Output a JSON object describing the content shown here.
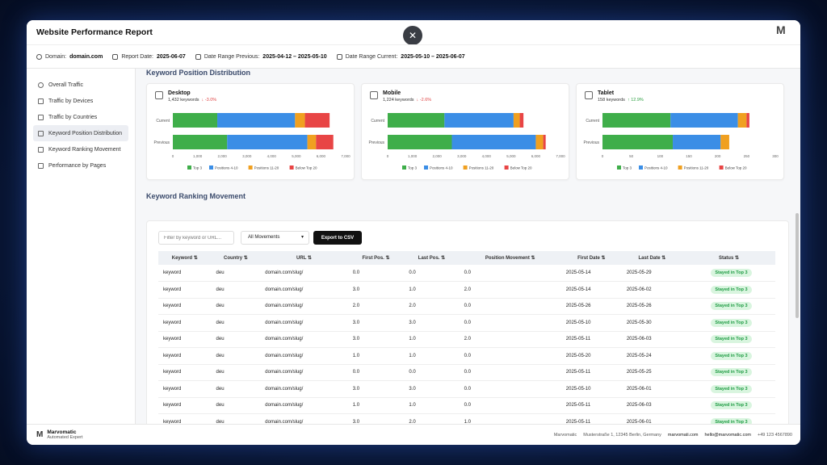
{
  "window": {
    "title": "Website Performance Report",
    "close_label": "✕",
    "logo": "M"
  },
  "info": {
    "domain_label": "Domain:",
    "domain_value": "domain.com",
    "report_date_label": "Report Date:",
    "report_date_value": "2025-06-07",
    "range_prev_label": "Date Range Previous:",
    "range_prev_value": "2025-04-12 – 2025-05-10",
    "range_cur_label": "Date Range Current:",
    "range_cur_value": "2025-05-10 – 2025-06-07"
  },
  "sidebar": {
    "items": [
      {
        "label": "Overall Traffic",
        "icon": "globe-icon"
      },
      {
        "label": "Traffic by Devices",
        "icon": "devices-icon"
      },
      {
        "label": "Traffic by Countries",
        "icon": "flag-icon"
      },
      {
        "label": "Keyword Position Distribution",
        "icon": "list-icon"
      },
      {
        "label": "Keyword Ranking Movement",
        "icon": "arrows-icon"
      },
      {
        "label": "Performance by Pages",
        "icon": "page-icon"
      }
    ]
  },
  "distribution": {
    "title": "Keyword Position Distribution",
    "legend": [
      "Top 3",
      "Positions 4-10",
      "Positions 11-20",
      "Below Top 20"
    ],
    "colors": [
      "#3fae4a",
      "#3b8ee6",
      "#f0a020",
      "#e84545"
    ],
    "row_labels": [
      "Current",
      "Previous"
    ]
  },
  "chart_data": [
    {
      "type": "bar",
      "title": "Desktop",
      "subtitle": "1,432 keywords",
      "change": "↓ -3.0%",
      "change_dir": "neg",
      "categories": [
        "Current",
        "Previous"
      ],
      "series": [
        {
          "name": "Top 3",
          "values": [
            1800,
            2200
          ]
        },
        {
          "name": "Positions 4-10",
          "values": [
            3150,
            3250
          ]
        },
        {
          "name": "Positions 11-20",
          "values": [
            400,
            350
          ]
        },
        {
          "name": "Below Top 20",
          "values": [
            1000,
            700
          ]
        }
      ],
      "ticks": [
        "0",
        "1,000",
        "2,000",
        "3,000",
        "4,000",
        "5,000",
        "6,000",
        "7,000"
      ],
      "xlim": [
        0,
        7000
      ]
    },
    {
      "type": "bar",
      "title": "Mobile",
      "subtitle": "1,224 keywords",
      "change": "↓ -2.6%",
      "change_dir": "neg",
      "categories": [
        "Current",
        "Previous"
      ],
      "series": [
        {
          "name": "Top 3",
          "values": [
            2300,
            2600
          ]
        },
        {
          "name": "Positions 4-10",
          "values": [
            2800,
            3400
          ]
        },
        {
          "name": "Positions 11-20",
          "values": [
            250,
            300
          ]
        },
        {
          "name": "Below Top 20",
          "values": [
            150,
            100
          ]
        }
      ],
      "ticks": [
        "0",
        "1,000",
        "2,000",
        "3,000",
        "4,000",
        "5,000",
        "6,000",
        "7,000"
      ],
      "xlim": [
        0,
        7000
      ]
    },
    {
      "type": "bar",
      "title": "Tablet",
      "subtitle": "158 keywords",
      "change": "↑ 12.9%",
      "change_dir": "pos",
      "categories": [
        "Current",
        "Previous"
      ],
      "series": [
        {
          "name": "Top 3",
          "values": [
            118,
            122
          ]
        },
        {
          "name": "Positions 4-10",
          "values": [
            117,
            83
          ]
        },
        {
          "name": "Positions 11-20",
          "values": [
            15,
            15
          ]
        },
        {
          "name": "Below Top 20",
          "values": [
            5,
            0
          ]
        }
      ],
      "ticks": [
        "0",
        "50",
        "100",
        "150",
        "200",
        "250",
        "300"
      ],
      "xlim": [
        0,
        300
      ]
    }
  ],
  "movement": {
    "title": "Keyword Ranking Movement",
    "filter_placeholder": "Filter by keyword or URL...",
    "select_value": "All Movements",
    "export_label": "Export to CSV",
    "columns": [
      "Keyword ⇅",
      "Country ⇅",
      "URL ⇅",
      "First Pos. ⇅",
      "Last Pos. ⇅",
      "Position Movement ⇅",
      "First Date ⇅",
      "Last Date ⇅",
      "Status ⇅"
    ],
    "rows": [
      [
        "keyword",
        "deu",
        "domain.com/slug/",
        "0.0",
        "0.0",
        "0.0",
        "2025-05-14",
        "2025-05-29",
        "Stayed in Top 3"
      ],
      [
        "keyword",
        "deu",
        "domain.com/slug/",
        "3.0",
        "1.0",
        "2.0",
        "2025-05-14",
        "2025-06-02",
        "Stayed in Top 3"
      ],
      [
        "keyword",
        "deu",
        "domain.com/slug/",
        "2.0",
        "2.0",
        "0.0",
        "2025-05-26",
        "2025-05-26",
        "Stayed in Top 3"
      ],
      [
        "keyword",
        "deu",
        "domain.com/slug/",
        "3.0",
        "3.0",
        "0.0",
        "2025-05-10",
        "2025-05-30",
        "Stayed in Top 3"
      ],
      [
        "keyword",
        "deu",
        "domain.com/slug/",
        "3.0",
        "1.0",
        "2.0",
        "2025-05-11",
        "2025-06-03",
        "Stayed in Top 3"
      ],
      [
        "keyword",
        "deu",
        "domain.com/slug/",
        "1.0",
        "1.0",
        "0.0",
        "2025-05-20",
        "2025-05-24",
        "Stayed in Top 3"
      ],
      [
        "keyword",
        "deu",
        "domain.com/slug/",
        "0.0",
        "0.0",
        "0.0",
        "2025-05-11",
        "2025-05-25",
        "Stayed in Top 3"
      ],
      [
        "keyword",
        "deu",
        "domain.com/slug/",
        "3.0",
        "3.0",
        "0.0",
        "2025-05-10",
        "2025-06-01",
        "Stayed in Top 3"
      ],
      [
        "keyword",
        "deu",
        "domain.com/slug/",
        "1.0",
        "1.0",
        "0.0",
        "2025-05-11",
        "2025-06-03",
        "Stayed in Top 3"
      ],
      [
        "keyword",
        "deu",
        "domain.com/slug/",
        "3.0",
        "2.0",
        "1.0",
        "2025-05-11",
        "2025-06-01",
        "Stayed in Top 3"
      ]
    ]
  },
  "footer": {
    "brand": "Marvomatic",
    "tagline": "Automated Expert",
    "company": "Marvomatic",
    "address": "Musterstraße 1, 12345 Berlin, Germany",
    "website": "marvomati.com",
    "email": "hello@marvomatic.com",
    "phone": "+49 123 4567890"
  }
}
